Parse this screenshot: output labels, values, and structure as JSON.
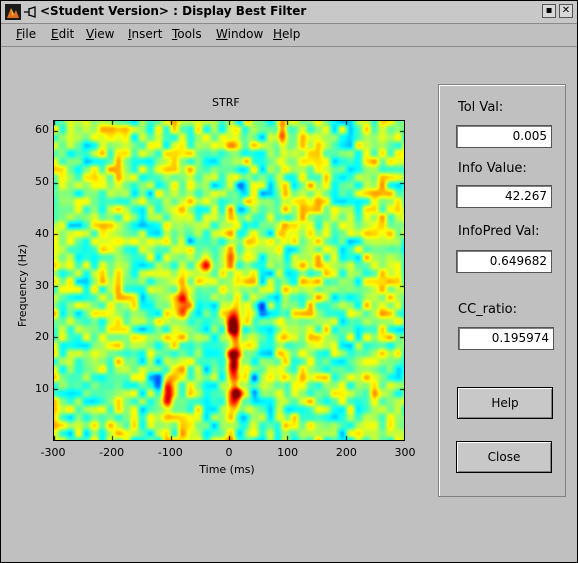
{
  "window": {
    "title": "<Student Version> : Display Best Filter",
    "minimize_glyph": "▪",
    "close_glyph": "✕"
  },
  "menu": [
    {
      "label": "File",
      "u": "F",
      "rest": "ile"
    },
    {
      "label": "Edit",
      "u": "E",
      "rest": "dit"
    },
    {
      "label": "View",
      "u": "V",
      "rest": "iew"
    },
    {
      "label": "Insert",
      "u": "I",
      "rest": "nsert"
    },
    {
      "label": "Tools",
      "u": "T",
      "rest": "ools"
    },
    {
      "label": "Window",
      "u": "W",
      "rest": "indow"
    },
    {
      "label": "Help",
      "u": "H",
      "rest": "elp"
    }
  ],
  "panel": {
    "tol_label": "Tol Val:",
    "tol_value": "0.005",
    "info_label": "Info Value:",
    "info_value": "42.267",
    "infopred_label": "InfoPred Val:",
    "infopred_value": "0.649682",
    "cc_label": "CC_ratio:",
    "cc_value": "0.195974",
    "help_button": "Help",
    "close_button": "Close"
  },
  "chart_data": {
    "type": "heatmap",
    "title": "STRF",
    "xlabel": "Time (ms)",
    "ylabel": "Frequency (Hz)",
    "xlim": [
      -300,
      300
    ],
    "ylim": [
      0,
      62
    ],
    "x_ticks": [
      -300,
      -200,
      -100,
      0,
      100,
      200,
      300
    ],
    "y_ticks": [
      10,
      20,
      30,
      40,
      50,
      60
    ],
    "colormap": "jet",
    "grid": false,
    "hotspots": [
      {
        "x": 8,
        "y": 15,
        "value": 1.0
      },
      {
        "x": 8,
        "y": 22,
        "value": 0.85
      },
      {
        "x": 12,
        "y": 9,
        "value": 0.8
      },
      {
        "x": -105,
        "y": 9,
        "value": 0.75
      },
      {
        "x": -80,
        "y": 26,
        "value": 0.7
      },
      {
        "x": 90,
        "y": 60,
        "value": 0.65
      },
      {
        "x": -40,
        "y": 34,
        "value": 0.6
      }
    ],
    "coldspots": [
      {
        "x": 40,
        "y": 11,
        "value": -0.8
      },
      {
        "x": 20,
        "y": 50,
        "value": -0.6
      },
      {
        "x": -120,
        "y": 12,
        "value": -0.55
      },
      {
        "x": -70,
        "y": 40,
        "value": -0.5
      },
      {
        "x": 55,
        "y": 25,
        "value": -0.45
      }
    ]
  }
}
